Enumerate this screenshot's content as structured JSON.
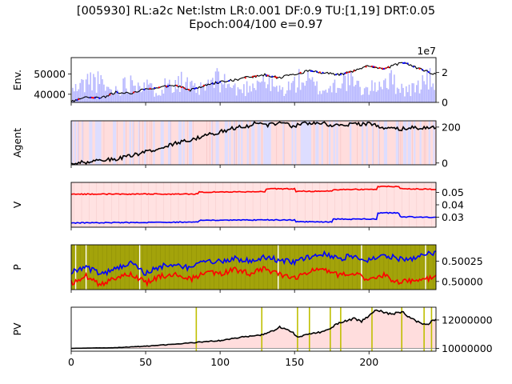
{
  "title": {
    "line1": "[005930] RL:a2c Net:lstm LR:0.001 DF:0.9 TU:[1,19] DRT:0.05",
    "line2": "Epoch:004/100 e=0.97"
  },
  "colors": {
    "price": "#000000",
    "buy": "#ff0000",
    "sell": "#0000ff",
    "volume": "#aaaaff",
    "agent": "#000000",
    "v_buy": "#ff0000",
    "v_sell": "#0000ff",
    "pv": "#000000",
    "olive": "#a3a30a",
    "buy_bg": "#ffdddd",
    "sell_bg": "#ddddff",
    "learn_line": "#bfbf00"
  },
  "chart_data": [
    {
      "type": "line",
      "panel": "env",
      "ylabel": "Env.",
      "xlim": [
        0,
        245
      ],
      "ylim": [
        36000,
        58000
      ],
      "yticks": [
        "40000",
        "50000"
      ],
      "y2lim": [
        0,
        30000000
      ],
      "y2ticks": [
        "0",
        "2"
      ],
      "y2_offset_label": "1e7",
      "price": [
        [
          0,
          36500
        ],
        [
          10,
          38500
        ],
        [
          20,
          38000
        ],
        [
          30,
          41000
        ],
        [
          40,
          40500
        ],
        [
          50,
          42500
        ],
        [
          60,
          43500
        ],
        [
          70,
          44500
        ],
        [
          80,
          42000
        ],
        [
          90,
          44500
        ],
        [
          100,
          46000
        ],
        [
          110,
          47000
        ],
        [
          120,
          48500
        ],
        [
          130,
          49500
        ],
        [
          140,
          48000
        ],
        [
          150,
          50000
        ],
        [
          160,
          51500
        ],
        [
          170,
          50500
        ],
        [
          180,
          49500
        ],
        [
          190,
          51500
        ],
        [
          200,
          54000
        ],
        [
          210,
          52500
        ],
        [
          220,
          55000
        ],
        [
          225,
          55500
        ],
        [
          230,
          53500
        ],
        [
          238,
          51500
        ],
        [
          245,
          49500
        ]
      ],
      "volume_note": "semi-transparent bars on secondary axis"
    },
    {
      "type": "line",
      "panel": "agent",
      "ylabel": "Agent",
      "xlim": [
        0,
        245
      ],
      "ylim": [
        -10,
        235
      ],
      "yticks": [
        "0",
        "200"
      ],
      "holdings": [
        [
          0,
          0
        ],
        [
          10,
          5
        ],
        [
          20,
          15
        ],
        [
          30,
          20
        ],
        [
          40,
          40
        ],
        [
          50,
          60
        ],
        [
          60,
          85
        ],
        [
          70,
          110
        ],
        [
          80,
          130
        ],
        [
          90,
          150
        ],
        [
          100,
          175
        ],
        [
          110,
          195
        ],
        [
          120,
          210
        ],
        [
          125,
          225
        ],
        [
          130,
          210
        ],
        [
          140,
          220
        ],
        [
          150,
          205
        ],
        [
          160,
          225
        ],
        [
          170,
          220
        ],
        [
          180,
          205
        ],
        [
          190,
          215
        ],
        [
          200,
          220
        ],
        [
          210,
          200
        ],
        [
          220,
          190
        ],
        [
          230,
          195
        ],
        [
          245,
          195
        ]
      ]
    },
    {
      "type": "line",
      "panel": "value",
      "ylabel": "V",
      "xlim": [
        0,
        245
      ],
      "ylim": [
        0.022,
        0.058
      ],
      "yticks": [
        "0.03",
        "0.04",
        "0.05"
      ],
      "series": [
        {
          "values": [
            [
              0,
              0.0485
            ],
            [
              60,
              0.0487
            ],
            [
              85,
              0.0487
            ],
            [
              86,
              0.0502
            ],
            [
              130,
              0.0506
            ],
            [
              131,
              0.0528
            ],
            [
              150,
              0.0528
            ],
            [
              151,
              0.0508
            ],
            [
              175,
              0.051
            ],
            [
              176,
              0.0522
            ],
            [
              205,
              0.0525
            ],
            [
              206,
              0.0547
            ],
            [
              220,
              0.0547
            ],
            [
              221,
              0.053
            ],
            [
              245,
              0.0525
            ]
          ]
        },
        {
          "values": [
            [
              0,
              0.0255
            ],
            [
              50,
              0.0258
            ],
            [
              85,
              0.0262
            ],
            [
              86,
              0.0275
            ],
            [
              130,
              0.0278
            ],
            [
              150,
              0.0278
            ],
            [
              151,
              0.0265
            ],
            [
              175,
              0.0262
            ],
            [
              176,
              0.0285
            ],
            [
              205,
              0.0285
            ],
            [
              206,
              0.0335
            ],
            [
              220,
              0.0335
            ],
            [
              221,
              0.0305
            ],
            [
              245,
              0.0298
            ]
          ]
        }
      ]
    },
    {
      "type": "line",
      "panel": "policy",
      "ylabel": "P",
      "xlim": [
        0,
        245
      ],
      "ylim": [
        0.4999,
        0.50045
      ],
      "yticks": [
        "0.50000",
        "0.50025"
      ],
      "series": [
        {
          "values": [
            [
              0,
              0.50012
            ],
            [
              10,
              0.50018
            ],
            [
              20,
              0.50008
            ],
            [
              30,
              0.50015
            ],
            [
              40,
              0.50022
            ],
            [
              50,
              0.5001
            ],
            [
              60,
              0.50018
            ],
            [
              70,
              0.50022
            ],
            [
              80,
              0.50016
            ],
            [
              90,
              0.50026
            ],
            [
              100,
              0.50024
            ],
            [
              110,
              0.50028
            ],
            [
              120,
              0.50026
            ],
            [
              130,
              0.5003
            ],
            [
              140,
              0.50026
            ],
            [
              150,
              0.50024
            ],
            [
              160,
              0.5003
            ],
            [
              170,
              0.50034
            ],
            [
              180,
              0.50028
            ],
            [
              190,
              0.50032
            ],
            [
              200,
              0.50026
            ],
            [
              210,
              0.50032
            ],
            [
              220,
              0.50028
            ],
            [
              230,
              0.50028
            ],
            [
              245,
              0.50036
            ]
          ]
        },
        {
          "values": [
            [
              0,
              0.49998
            ],
            [
              10,
              0.50006
            ],
            [
              20,
              0.49996
            ],
            [
              30,
              0.50004
            ],
            [
              40,
              0.5001
            ],
            [
              50,
              0.49998
            ],
            [
              60,
              0.50006
            ],
            [
              70,
              0.5001
            ],
            [
              80,
              0.50002
            ],
            [
              90,
              0.50012
            ],
            [
              100,
              0.5001
            ],
            [
              110,
              0.50014
            ],
            [
              120,
              0.5001
            ],
            [
              130,
              0.50016
            ],
            [
              140,
              0.50008
            ],
            [
              150,
              0.50004
            ],
            [
              160,
              0.50012
            ],
            [
              170,
              0.50014
            ],
            [
              180,
              0.50008
            ],
            [
              190,
              0.5001
            ],
            [
              200,
              0.50002
            ],
            [
              210,
              0.50008
            ],
            [
              220,
              0.49998
            ],
            [
              230,
              0.50002
            ],
            [
              245,
              0.50005
            ]
          ]
        }
      ]
    },
    {
      "type": "line",
      "panel": "portfolio",
      "ylabel": "PV",
      "xlim": [
        0,
        245
      ],
      "ylim": [
        9800000,
        12900000
      ],
      "yticks": [
        "10000000",
        "12000000"
      ],
      "xticks": [
        "0",
        "50",
        "100",
        "150",
        "200"
      ],
      "baseline": 10000000,
      "pv": [
        [
          0,
          10000000
        ],
        [
          30,
          10050000
        ],
        [
          50,
          10150000
        ],
        [
          70,
          10300000
        ],
        [
          84,
          10420000
        ],
        [
          100,
          10550000
        ],
        [
          115,
          10800000
        ],
        [
          128,
          10950000
        ],
        [
          135,
          11200000
        ],
        [
          140,
          11500000
        ],
        [
          148,
          11200000
        ],
        [
          152,
          10800000
        ],
        [
          160,
          11000000
        ],
        [
          170,
          11200000
        ],
        [
          175,
          11500000
        ],
        [
          180,
          11800000
        ],
        [
          190,
          12100000
        ],
        [
          195,
          11900000
        ],
        [
          200,
          12300000
        ],
        [
          205,
          12700000
        ],
        [
          215,
          12400000
        ],
        [
          222,
          12600000
        ],
        [
          230,
          12000000
        ],
        [
          238,
          11600000
        ],
        [
          245,
          12100000
        ]
      ],
      "learning_points": [
        84,
        128,
        152,
        160,
        174,
        181,
        202,
        222,
        237,
        242
      ]
    }
  ]
}
